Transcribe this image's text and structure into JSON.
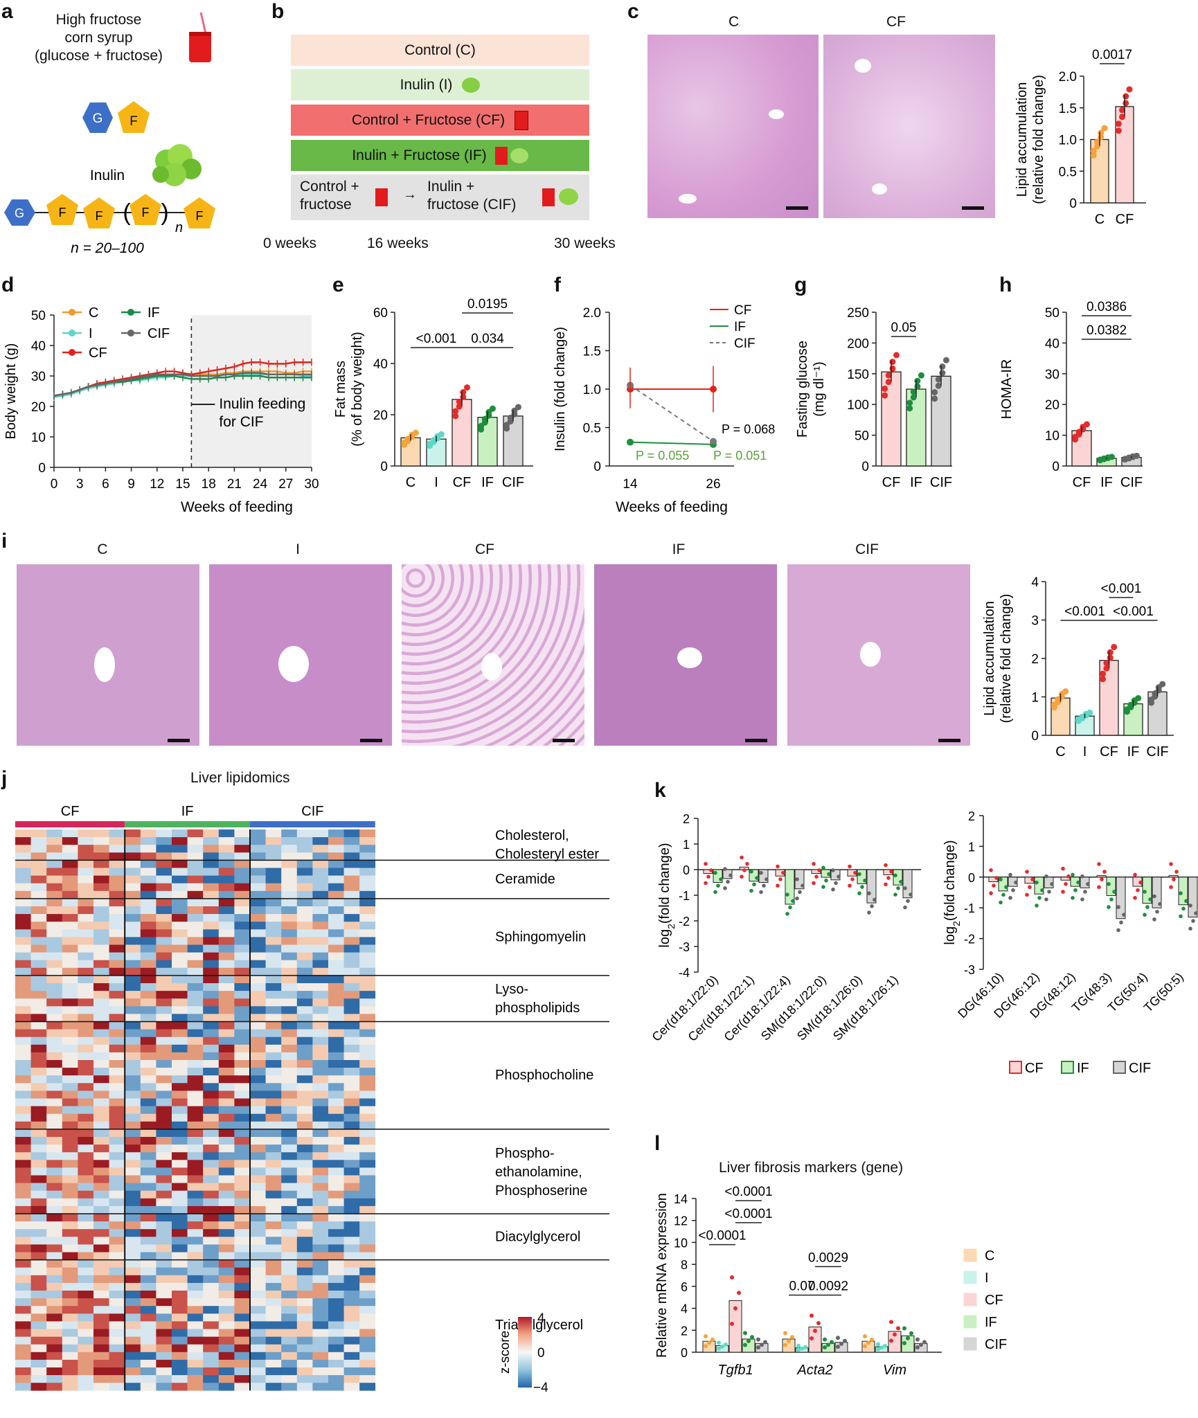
{
  "panel_letters": [
    "a",
    "b",
    "c",
    "d",
    "e",
    "f",
    "g",
    "h",
    "i",
    "j",
    "k",
    "l"
  ],
  "panel_a": {
    "syrup_lines": [
      "High fructose",
      "corn syrup",
      "(glucose + fructose)"
    ],
    "glucose": "G",
    "fructose": "F",
    "title": "Inulin",
    "repeat": "n",
    "caption": "n = 20–100"
  },
  "panel_b": {
    "rows": [
      "Control (C)",
      "Inulin (I)",
      "Control + Fructose (CF)",
      "Inulin + Fructose (IF)"
    ],
    "cif_left": [
      "Control +",
      "fructose"
    ],
    "cif_arrow": "→",
    "cif_right": [
      "Inulin +",
      "fructose (CIF)"
    ],
    "timeline": [
      "0 weeks",
      "16 weeks",
      "30 weeks"
    ],
    "colors": {
      "C": "#fbe3d6",
      "I": "#ddf0d4",
      "CF": "#f26f6f",
      "IF": "#68b947",
      "CIF": "#e2e2e2"
    }
  },
  "panel_c": {
    "image_titles": [
      "C",
      "CF"
    ],
    "chart_data": {
      "type": "bar",
      "categories": [
        "C",
        "CF"
      ],
      "values": [
        1.0,
        1.52
      ],
      "ylabel": "Lipid accumulation (relative fold change)",
      "ylabel_lines": [
        "Lipid accumulation",
        "(relative fold change)"
      ],
      "yticks": [
        "0",
        "0.5",
        "1.0",
        "1.5",
        "2.0"
      ],
      "ylim": [
        0,
        2.0
      ],
      "pvalue": "0.0017"
    }
  },
  "panel_d": {
    "chart_data": {
      "type": "line",
      "xlabel": "Weeks of feeding",
      "ylabel": "Body weight (g)",
      "x": [
        0,
        1,
        2,
        3,
        4,
        5,
        6,
        7,
        8,
        9,
        10,
        11,
        12,
        13,
        14,
        15,
        16,
        17,
        18,
        19,
        20,
        21,
        22,
        23,
        24,
        25,
        26,
        27,
        28,
        29,
        30
      ],
      "xticks": [
        "0",
        "3",
        "6",
        "9",
        "12",
        "15",
        "18",
        "21",
        "24",
        "27",
        "30"
      ],
      "yticks": [
        "0",
        "10",
        "20",
        "30",
        "40",
        "50"
      ],
      "ylim": [
        0,
        50
      ],
      "xlim": [
        0,
        30
      ],
      "legend": [
        "C",
        "I",
        "CF",
        "IF",
        "CIF"
      ],
      "annotation": [
        "Inulin feeding",
        "for CIF"
      ],
      "series": [
        {
          "name": "C",
          "color": "#f39a2a",
          "values": [
            23.5,
            24,
            24.5,
            25.5,
            26.5,
            27,
            27.5,
            28,
            28.5,
            29,
            29.5,
            30,
            30.5,
            30.5,
            30.5,
            30.5,
            30.5,
            30.5,
            30.5,
            30.5,
            31,
            31,
            31.5,
            31.5,
            31.5,
            31.5,
            31.5,
            31,
            31,
            31.5,
            31.5
          ]
        },
        {
          "name": "I",
          "color": "#5ed6c4",
          "values": [
            23,
            23.5,
            24,
            25,
            26,
            26.5,
            27,
            27.5,
            28,
            28.5,
            28.5,
            29,
            29.5,
            29.5,
            30,
            30,
            30,
            30,
            30,
            30,
            30.5,
            30.5,
            30.5,
            30.5,
            30.5,
            30.5,
            30.5,
            30.5,
            30.5,
            30,
            30
          ]
        },
        {
          "name": "CF",
          "color": "#e2231a",
          "values": [
            23.5,
            24,
            24.5,
            25.5,
            26.5,
            27.5,
            28,
            28.5,
            29,
            29.5,
            30,
            30.5,
            31,
            31.5,
            31.5,
            31,
            30.5,
            31,
            31.5,
            32,
            32.5,
            33,
            34,
            34.5,
            34.5,
            34,
            34,
            34,
            34.5,
            34.5,
            34.5
          ]
        },
        {
          "name": "IF",
          "color": "#1a8a4a",
          "values": [
            23.5,
            24,
            24.5,
            25.5,
            26.5,
            27,
            27.5,
            28,
            28,
            28.5,
            29,
            29.5,
            30,
            30,
            30,
            29.5,
            29,
            29,
            29,
            29.5,
            29.5,
            30,
            30,
            30,
            30,
            29.5,
            29.5,
            29.5,
            29.5,
            29.5,
            29.5
          ]
        },
        {
          "name": "CIF",
          "color": "#666666",
          "values": [
            23.5,
            24,
            24.5,
            25.5,
            26.5,
            27,
            27.5,
            28,
            28.5,
            29,
            29.5,
            30,
            30.5,
            30.5,
            30.5,
            30.5,
            30,
            30,
            30,
            30,
            30.5,
            30.5,
            31,
            31,
            31,
            30.5,
            30.5,
            30.5,
            30.5,
            30.5,
            30.5
          ]
        }
      ]
    }
  },
  "panel_e": {
    "chart_data": {
      "type": "bar",
      "categories": [
        "C",
        "I",
        "CF",
        "IF",
        "CIF"
      ],
      "values": [
        11,
        10.5,
        26,
        19,
        19.5
      ],
      "ylabel": "Fat mass (% of body weight)",
      "ylabel_lines": [
        "Fat mass",
        "(% of body weight)"
      ],
      "yticks": [
        "0",
        "20",
        "40",
        "60"
      ],
      "ylim": [
        0,
        60
      ],
      "pvalues": [
        "<0.001",
        "0.034",
        "0.0195"
      ]
    }
  },
  "panel_f": {
    "chart_data": {
      "type": "line",
      "x": [
        14,
        26
      ],
      "xticks": [
        "14",
        "26"
      ],
      "xlabel": "Weeks of feeding",
      "ylabel": "Insulin (fold change)",
      "yticks": [
        "0",
        "0.5",
        "1.0",
        "1.5",
        "2.0"
      ],
      "ylim": [
        0,
        2.0
      ],
      "legend": [
        "CF",
        "IF",
        "CIF"
      ],
      "series": [
        {
          "name": "CF",
          "values": [
            1.0,
            1.0
          ]
        },
        {
          "name": "IF",
          "values": [
            0.31,
            0.28
          ]
        },
        {
          "name": "CIF",
          "values": [
            1.05,
            0.32
          ]
        }
      ],
      "pvalues": [
        "P = 0.068",
        "P = 0.055",
        "P = 0.051"
      ]
    }
  },
  "panel_g": {
    "chart_data": {
      "type": "bar",
      "categories": [
        "CF",
        "IF",
        "CIF"
      ],
      "values": [
        153,
        125,
        146
      ],
      "ylabel": "Fasting glucose (mg dl⁻¹)",
      "ylabel_lines": [
        "Fasting glucose",
        "(mg dl⁻¹)"
      ],
      "yticks": [
        "0",
        "50",
        "100",
        "150",
        "200",
        "250"
      ],
      "ylim": [
        0,
        250
      ],
      "pvalue": "0.05"
    }
  },
  "panel_h": {
    "chart_data": {
      "type": "bar",
      "categories": [
        "CF",
        "IF",
        "CIF"
      ],
      "values": [
        11.5,
        2.5,
        2.8
      ],
      "ylabel": "HOMA-IR",
      "yticks": [
        "0",
        "10",
        "20",
        "30",
        "40",
        "50"
      ],
      "ylim": [
        0,
        50
      ],
      "pvalues": [
        "0.0386",
        "0.0382"
      ]
    }
  },
  "panel_i": {
    "image_titles": [
      "C",
      "I",
      "CF",
      "IF",
      "CIF"
    ],
    "chart_data": {
      "type": "bar",
      "categories": [
        "C",
        "I",
        "CF",
        "IF",
        "CIF"
      ],
      "values": [
        0.97,
        0.5,
        1.95,
        0.82,
        1.13
      ],
      "ylabel": "Lipid accumulation (relative fold change)",
      "ylabel_lines": [
        "Lipid accumulation",
        "(relative fold change)"
      ],
      "yticks": [
        "0",
        "1",
        "2",
        "3",
        "4"
      ],
      "ylim": [
        0,
        4
      ],
      "pvalues": [
        "<0.001",
        "<0.001",
        "<0.001"
      ]
    }
  },
  "panel_j": {
    "title": "Liver lipidomics",
    "groups": [
      "CF",
      "IF",
      "CIF"
    ],
    "group_colors": [
      "#d6255a",
      "#4db35e",
      "#3d6fc9"
    ],
    "classes": [
      [
        "Cholesterol,",
        "Cholesteryl ester"
      ],
      [
        "Ceramide"
      ],
      [
        "Sphingomyelin"
      ],
      [
        "Lyso-",
        "phospholipids"
      ],
      [
        "Phosphocholine"
      ],
      [
        "Phospho-",
        "ethanolamine,",
        "Phosphoserine"
      ],
      [
        "Diacylglycerol"
      ],
      [
        "Triacylglycerol"
      ]
    ],
    "colorbar": {
      "title": "z-score",
      "ticks": [
        "4",
        "0",
        "−4"
      ]
    }
  },
  "panel_k": {
    "left": {
      "categories": [
        "Cer(d18:1/22:0)",
        "Cer(d18:1/22:1)",
        "Cer(d18:1/22:4)",
        "SM(d18:1/22:0)",
        "SM(d18:1/26:0)",
        "SM(d18:1/26:1)"
      ],
      "CF": [
        -0.15,
        0.1,
        -0.25,
        -0.15,
        -0.25,
        -0.2
      ],
      "IF": [
        -0.5,
        -0.45,
        -1.35,
        -0.3,
        -0.55,
        -0.6
      ],
      "CIF": [
        -0.35,
        -0.5,
        -0.75,
        -0.4,
        -1.3,
        -1.1
      ],
      "yticks": [
        "2",
        "1",
        "0",
        "-1",
        "-2",
        "-3",
        "-4"
      ],
      "ylim": [
        -4,
        2
      ]
    },
    "right": {
      "categories": [
        "DG(46:10)",
        "DG(46:12)",
        "DG(48:12)",
        "TG(48:3)",
        "TG(50:4)",
        "TG(50:5)"
      ],
      "CF": [
        -0.15,
        -0.2,
        -0.1,
        0.05,
        -0.3,
        0.05
      ],
      "IF": [
        -0.45,
        -0.55,
        -0.3,
        -0.6,
        -0.85,
        -0.9
      ],
      "CIF": [
        -0.3,
        -0.35,
        -0.35,
        -1.35,
        -1.0,
        -1.3
      ],
      "yticks": [
        "2",
        "1",
        "0",
        "-1",
        "-2",
        "-3"
      ],
      "ylim": [
        -3,
        2
      ]
    },
    "ylabel": "log2(fold change)",
    "legend": [
      "CF",
      "IF",
      "CIF"
    ]
  },
  "panel_l": {
    "title": "Liver fibrosis markers (gene)",
    "chart_data": {
      "type": "bar",
      "categories": [
        "Tgfb1",
        "Acta2",
        "Vim"
      ],
      "series": [
        {
          "name": "C",
          "values": [
            1.0,
            1.2,
            1.0
          ]
        },
        {
          "name": "I",
          "values": [
            0.6,
            0.4,
            0.5
          ]
        },
        {
          "name": "CF",
          "values": [
            4.7,
            2.3,
            1.9
          ]
        },
        {
          "name": "IF",
          "values": [
            1.2,
            0.8,
            1.5
          ]
        },
        {
          "name": "CIF",
          "values": [
            0.8,
            0.9,
            0.8
          ]
        }
      ],
      "ylabel": "Relative mRNA expression",
      "yticks": [
        "0",
        "2",
        "4",
        "6",
        "8",
        "10",
        "12",
        "14"
      ],
      "ylim": [
        0,
        14
      ],
      "pvalues": [
        "<0.0001",
        "<0.0001",
        "<0.0001",
        "0.07",
        "0.0029",
        "0.0092"
      ]
    },
    "legend": [
      "C",
      "I",
      "CF",
      "IF",
      "CIF"
    ]
  },
  "colors": {
    "C": "#f7a23b",
    "I": "#5fd9c5",
    "CF": "#e52b2b",
    "IF": "#1e8f3c",
    "CIF": "#666666",
    "fillC": "#fbd9b2",
    "fillI": "#c9f2ea",
    "fillCF": "#fbd5d5",
    "fillIF": "#c9f0c0",
    "fillCIF": "#d6d6d6"
  }
}
